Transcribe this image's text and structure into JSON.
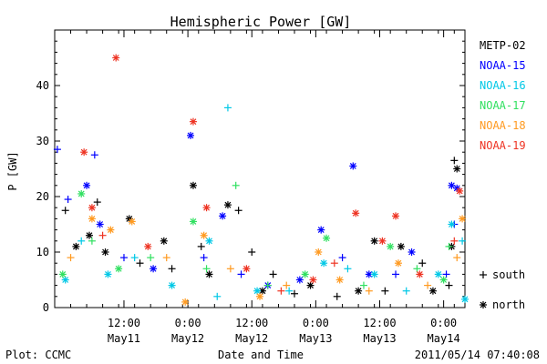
{
  "chart_data": {
    "type": "scatter",
    "title": "Hemispheric Power [GW]",
    "ylabel": "P [GW]",
    "xlabel": "Date and Time",
    "ylim": [
      0,
      50
    ],
    "y_ticks": [
      0,
      10,
      20,
      30,
      40
    ],
    "x_range": [
      "2011-05-10 23:00",
      "2011-05-14 04:00"
    ],
    "x_ticks": [
      {
        "t": "2011-05-11 12:00",
        "l1": "12:00",
        "l2": "May11"
      },
      {
        "t": "2011-05-12 00:00",
        "l1": "0:00",
        "l2": "May12"
      },
      {
        "t": "2011-05-12 12:00",
        "l1": "12:00",
        "l2": "May12"
      },
      {
        "t": "2011-05-13 00:00",
        "l1": "0:00",
        "l2": "May13"
      },
      {
        "t": "2011-05-13 12:00",
        "l1": "12:00",
        "l2": "May13"
      },
      {
        "t": "2011-05-14 00:00",
        "l1": "0:00",
        "l2": "May14"
      }
    ],
    "marker_legend": [
      {
        "symbol": "+",
        "label": "south"
      },
      {
        "symbol": "*",
        "label": "north"
      }
    ],
    "series": [
      {
        "name": "METP-02",
        "color": "#000000",
        "points": [
          {
            "x": "2011-05-11 01:00",
            "y": 17.5,
            "m": "+"
          },
          {
            "x": "2011-05-11 03:00",
            "y": 11,
            "m": "*"
          },
          {
            "x": "2011-05-11 05:30",
            "y": 13,
            "m": "*"
          },
          {
            "x": "2011-05-11 07:00",
            "y": 19,
            "m": "+"
          },
          {
            "x": "2011-05-11 08:30",
            "y": 10,
            "m": "*"
          },
          {
            "x": "2011-05-11 13:00",
            "y": 16,
            "m": "*"
          },
          {
            "x": "2011-05-11 15:00",
            "y": 8,
            "m": "+"
          },
          {
            "x": "2011-05-11 19:30",
            "y": 12,
            "m": "*"
          },
          {
            "x": "2011-05-11 21:00",
            "y": 7,
            "m": "+"
          },
          {
            "x": "2011-05-12 01:00",
            "y": 22,
            "m": "*"
          },
          {
            "x": "2011-05-12 02:30",
            "y": 11,
            "m": "+"
          },
          {
            "x": "2011-05-12 04:00",
            "y": 6,
            "m": "*"
          },
          {
            "x": "2011-05-12 07:30",
            "y": 18.5,
            "m": "*"
          },
          {
            "x": "2011-05-12 09:30",
            "y": 17.5,
            "m": "+"
          },
          {
            "x": "2011-05-12 12:00",
            "y": 10,
            "m": "+"
          },
          {
            "x": "2011-05-12 14:00",
            "y": 3,
            "m": "*"
          },
          {
            "x": "2011-05-12 16:00",
            "y": 6,
            "m": "+"
          },
          {
            "x": "2011-05-12 20:00",
            "y": 2.5,
            "m": "+"
          },
          {
            "x": "2011-05-12 23:00",
            "y": 4,
            "m": "*"
          },
          {
            "x": "2011-05-13 04:00",
            "y": 2,
            "m": "+"
          },
          {
            "x": "2011-05-13 08:00",
            "y": 3,
            "m": "*"
          },
          {
            "x": "2011-05-13 11:00",
            "y": 12,
            "m": "*"
          },
          {
            "x": "2011-05-13 13:00",
            "y": 3,
            "m": "+"
          },
          {
            "x": "2011-05-13 16:00",
            "y": 11,
            "m": "*"
          },
          {
            "x": "2011-05-13 20:00",
            "y": 8,
            "m": "+"
          },
          {
            "x": "2011-05-13 22:00",
            "y": 3,
            "m": "*"
          },
          {
            "x": "2011-05-14 01:00",
            "y": 4,
            "m": "+"
          },
          {
            "x": "2011-05-14 01:30",
            "y": 11,
            "m": "*"
          },
          {
            "x": "2011-05-14 02:00",
            "y": 26.5,
            "m": "+"
          },
          {
            "x": "2011-05-14 02:30",
            "y": 25,
            "m": "*"
          }
        ]
      },
      {
        "name": "NOAA-15",
        "color": "#0000ff",
        "points": [
          {
            "x": "2011-05-10 23:30",
            "y": 28.5,
            "m": "+"
          },
          {
            "x": "2011-05-11 01:30",
            "y": 19.5,
            "m": "+"
          },
          {
            "x": "2011-05-11 05:00",
            "y": 22,
            "m": "*"
          },
          {
            "x": "2011-05-11 06:30",
            "y": 27.5,
            "m": "+"
          },
          {
            "x": "2011-05-11 07:30",
            "y": 15,
            "m": "*"
          },
          {
            "x": "2011-05-11 12:00",
            "y": 9,
            "m": "+"
          },
          {
            "x": "2011-05-11 17:30",
            "y": 7,
            "m": "*"
          },
          {
            "x": "2011-05-12 00:30",
            "y": 31,
            "m": "*"
          },
          {
            "x": "2011-05-12 03:00",
            "y": 9,
            "m": "+"
          },
          {
            "x": "2011-05-12 06:30",
            "y": 16.5,
            "m": "*"
          },
          {
            "x": "2011-05-12 10:00",
            "y": 6,
            "m": "+"
          },
          {
            "x": "2011-05-12 15:00",
            "y": 4,
            "m": "*"
          },
          {
            "x": "2011-05-12 21:00",
            "y": 5,
            "m": "*"
          },
          {
            "x": "2011-05-13 01:00",
            "y": 14,
            "m": "*"
          },
          {
            "x": "2011-05-13 05:00",
            "y": 9,
            "m": "+"
          },
          {
            "x": "2011-05-13 07:00",
            "y": 25.5,
            "m": "*"
          },
          {
            "x": "2011-05-13 10:00",
            "y": 6,
            "m": "*"
          },
          {
            "x": "2011-05-13 15:00",
            "y": 6,
            "m": "+"
          },
          {
            "x": "2011-05-13 18:00",
            "y": 10,
            "m": "*"
          },
          {
            "x": "2011-05-14 00:30",
            "y": 6,
            "m": "+"
          },
          {
            "x": "2011-05-14 01:30",
            "y": 22,
            "m": "*"
          },
          {
            "x": "2011-05-14 02:30",
            "y": 21.5,
            "m": "*"
          },
          {
            "x": "2011-05-14 02:00",
            "y": 15,
            "m": "+"
          }
        ]
      },
      {
        "name": "NOAA-16",
        "color": "#00c8e6",
        "points": [
          {
            "x": "2011-05-11 01:00",
            "y": 5,
            "m": "*"
          },
          {
            "x": "2011-05-11 04:00",
            "y": 12,
            "m": "+"
          },
          {
            "x": "2011-05-11 09:00",
            "y": 6,
            "m": "*"
          },
          {
            "x": "2011-05-11 14:00",
            "y": 9,
            "m": "+"
          },
          {
            "x": "2011-05-11 21:00",
            "y": 4,
            "m": "*"
          },
          {
            "x": "2011-05-12 04:00",
            "y": 12,
            "m": "*"
          },
          {
            "x": "2011-05-12 07:30",
            "y": 36,
            "m": "+"
          },
          {
            "x": "2011-05-12 05:30",
            "y": 2,
            "m": "+"
          },
          {
            "x": "2011-05-12 13:00",
            "y": 3,
            "m": "*"
          },
          {
            "x": "2011-05-12 19:00",
            "y": 3,
            "m": "+"
          },
          {
            "x": "2011-05-13 01:30",
            "y": 8,
            "m": "*"
          },
          {
            "x": "2011-05-13 06:00",
            "y": 7,
            "m": "+"
          },
          {
            "x": "2011-05-13 11:00",
            "y": 6,
            "m": "*"
          },
          {
            "x": "2011-05-13 17:00",
            "y": 3,
            "m": "+"
          },
          {
            "x": "2011-05-13 23:00",
            "y": 6,
            "m": "*"
          },
          {
            "x": "2011-05-14 01:30",
            "y": 15,
            "m": "*"
          },
          {
            "x": "2011-05-14 03:30",
            "y": 12,
            "m": "+"
          },
          {
            "x": "2011-05-14 04:00",
            "y": 1.5,
            "m": "*"
          }
        ]
      },
      {
        "name": "NOAA-17",
        "color": "#30e060",
        "points": [
          {
            "x": "2011-05-11 00:30",
            "y": 6,
            "m": "*"
          },
          {
            "x": "2011-05-11 04:00",
            "y": 20.5,
            "m": "*"
          },
          {
            "x": "2011-05-11 06:00",
            "y": 12,
            "m": "+"
          },
          {
            "x": "2011-05-11 11:00",
            "y": 7,
            "m": "*"
          },
          {
            "x": "2011-05-11 17:00",
            "y": 9,
            "m": "+"
          },
          {
            "x": "2011-05-12 01:00",
            "y": 15.5,
            "m": "*"
          },
          {
            "x": "2011-05-12 03:30",
            "y": 7,
            "m": "+"
          },
          {
            "x": "2011-05-12 09:00",
            "y": 22,
            "m": "+"
          },
          {
            "x": "2011-05-12 15:00",
            "y": 4,
            "m": "+"
          },
          {
            "x": "2011-05-12 22:00",
            "y": 6,
            "m": "*"
          },
          {
            "x": "2011-05-13 02:00",
            "y": 12.5,
            "m": "*"
          },
          {
            "x": "2011-05-13 09:00",
            "y": 4,
            "m": "+"
          },
          {
            "x": "2011-05-13 14:00",
            "y": 11,
            "m": "*"
          },
          {
            "x": "2011-05-13 19:00",
            "y": 7,
            "m": "+"
          },
          {
            "x": "2011-05-14 00:00",
            "y": 5,
            "m": "*"
          },
          {
            "x": "2011-05-14 01:00",
            "y": 11,
            "m": "+"
          }
        ]
      },
      {
        "name": "NOAA-18",
        "color": "#ff9a20",
        "points": [
          {
            "x": "2011-05-11 02:00",
            "y": 9,
            "m": "+"
          },
          {
            "x": "2011-05-11 06:00",
            "y": 16,
            "m": "*"
          },
          {
            "x": "2011-05-11 09:30",
            "y": 14,
            "m": "*"
          },
          {
            "x": "2011-05-11 13:30",
            "y": 15.5,
            "m": "*"
          },
          {
            "x": "2011-05-11 20:00",
            "y": 9,
            "m": "+"
          },
          {
            "x": "2011-05-11 23:30",
            "y": 1,
            "m": "*"
          },
          {
            "x": "2011-05-12 03:00",
            "y": 13,
            "m": "*"
          },
          {
            "x": "2011-05-12 08:00",
            "y": 7,
            "m": "+"
          },
          {
            "x": "2011-05-12 13:30",
            "y": 2,
            "m": "*"
          },
          {
            "x": "2011-05-12 18:30",
            "y": 4,
            "m": "+"
          },
          {
            "x": "2011-05-13 00:30",
            "y": 10,
            "m": "*"
          },
          {
            "x": "2011-05-13 04:30",
            "y": 5,
            "m": "*"
          },
          {
            "x": "2011-05-13 10:00",
            "y": 3,
            "m": "+"
          },
          {
            "x": "2011-05-13 15:30",
            "y": 8,
            "m": "*"
          },
          {
            "x": "2011-05-13 21:00",
            "y": 4,
            "m": "+"
          },
          {
            "x": "2011-05-14 03:30",
            "y": 16,
            "m": "*"
          },
          {
            "x": "2011-05-14 02:30",
            "y": 9,
            "m": "+"
          }
        ]
      },
      {
        "name": "NOAA-19",
        "color": "#ee3322",
        "points": [
          {
            "x": "2011-05-11 04:30",
            "y": 28,
            "m": "*"
          },
          {
            "x": "2011-05-11 10:30",
            "y": 45,
            "m": "*"
          },
          {
            "x": "2011-05-11 06:00",
            "y": 18,
            "m": "*"
          },
          {
            "x": "2011-05-11 08:00",
            "y": 13,
            "m": "+"
          },
          {
            "x": "2011-05-11 16:30",
            "y": 11,
            "m": "*"
          },
          {
            "x": "2011-05-12 01:00",
            "y": 33.5,
            "m": "*"
          },
          {
            "x": "2011-05-12 03:30",
            "y": 18,
            "m": "*"
          },
          {
            "x": "2011-05-12 11:00",
            "y": 7,
            "m": "*"
          },
          {
            "x": "2011-05-12 17:30",
            "y": 3,
            "m": "+"
          },
          {
            "x": "2011-05-12 23:30",
            "y": 5,
            "m": "*"
          },
          {
            "x": "2011-05-13 03:30",
            "y": 8,
            "m": "+"
          },
          {
            "x": "2011-05-13 07:30",
            "y": 17,
            "m": "*"
          },
          {
            "x": "2011-05-13 12:30",
            "y": 12,
            "m": "*"
          },
          {
            "x": "2011-05-13 15:00",
            "y": 16.5,
            "m": "*"
          },
          {
            "x": "2011-05-13 19:30",
            "y": 6,
            "m": "*"
          },
          {
            "x": "2011-05-14 03:00",
            "y": 21,
            "m": "*"
          },
          {
            "x": "2011-05-14 02:00",
            "y": 12,
            "m": "+"
          }
        ]
      }
    ]
  },
  "footer": {
    "plot_credit": "Plot: CCMC",
    "timestamp": "2011/05/14 07:40:08"
  }
}
